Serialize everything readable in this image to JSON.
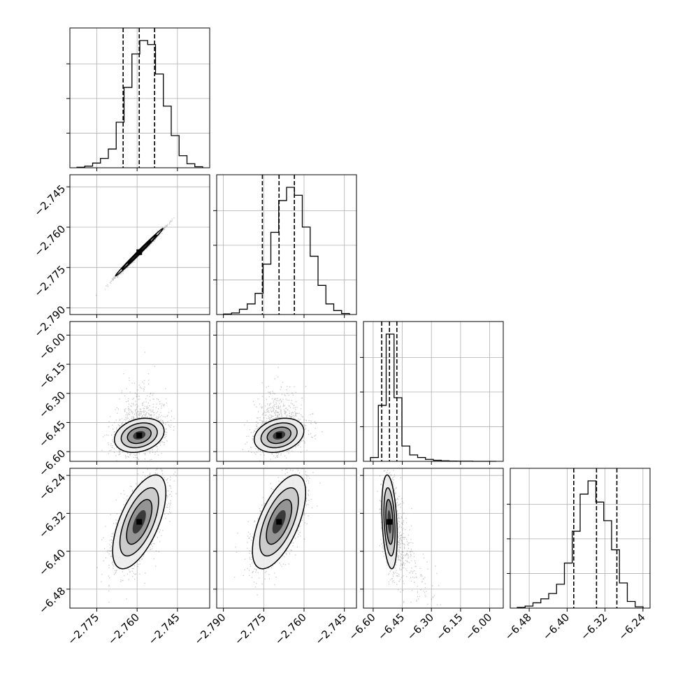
{
  "chart_data": {
    "type": "corner",
    "grid": true,
    "params": [
      {
        "range": [
          -2.785,
          -2.733
        ],
        "ticks": [
          -2.775,
          -2.76,
          -2.745
        ],
        "tick_labels": [
          "−2.775",
          "−2.760",
          "−2.745"
        ],
        "hist": [
          0.004,
          0.012,
          0.035,
          0.07,
          0.14,
          0.34,
          0.6,
          0.85,
          0.95,
          0.92,
          0.7,
          0.46,
          0.24,
          0.09,
          0.03,
          0.008
        ],
        "quantiles": [
          -2.7652,
          -2.7592,
          -2.7535
        ]
      },
      {
        "range": [
          -2.7925,
          -2.7405
        ],
        "ticks": [
          -2.79,
          -2.775,
          -2.76,
          -2.745
        ],
        "tick_labels": [
          "−2.790",
          "−2.775",
          "−2.760",
          "−2.745"
        ],
        "hist": [
          0.004,
          0.012,
          0.04,
          0.08,
          0.16,
          0.38,
          0.62,
          0.86,
          0.96,
          0.9,
          0.66,
          0.44,
          0.22,
          0.08,
          0.03,
          0.008
        ],
        "quantiles": [
          -2.7755,
          -2.7693,
          -2.7636
        ]
      },
      {
        "range": [
          -6.65,
          -5.93
        ],
        "ticks": [
          -6.6,
          -6.45,
          -6.3,
          -6.15,
          -6.0
        ],
        "tick_labels": [
          "−6.60",
          "−6.45",
          "−6.30",
          "−6.15",
          "−6.00"
        ],
        "hist": [
          0.03,
          0.44,
          1.0,
          0.5,
          0.12,
          0.05,
          0.03,
          0.015,
          0.008,
          0.004,
          0.002,
          0.001,
          0.001,
          0.0,
          0.0,
          0.0
        ],
        "quantiles": [
          -6.556,
          -6.516,
          -6.478
        ]
      },
      {
        "range": [
          -6.52,
          -6.225
        ],
        "ticks": [
          -6.48,
          -6.4,
          -6.32,
          -6.24
        ],
        "tick_labels": [
          "−6.48",
          "−6.40",
          "−6.32",
          "−6.24"
        ],
        "hist": [
          0.005,
          0.015,
          0.04,
          0.07,
          0.11,
          0.18,
          0.34,
          0.58,
          0.86,
          0.96,
          0.8,
          0.66,
          0.44,
          0.19,
          0.05,
          0.01
        ],
        "quantiles": [
          -6.386,
          -6.338,
          -6.295
        ]
      }
    ],
    "pairs": [
      {
        "x": 0,
        "y": 1,
        "mean": [
          -2.7592,
          -2.7693
        ],
        "sd": [
          0.004,
          0.004
        ],
        "rho": 0.995
      },
      {
        "x": 0,
        "y": 2,
        "mean": [
          -2.7592,
          -6.516
        ],
        "sd": [
          0.0042,
          0.04
        ],
        "rho": 0.25
      },
      {
        "x": 1,
        "y": 2,
        "mean": [
          -2.7693,
          -6.516
        ],
        "sd": [
          0.0042,
          0.04
        ],
        "rho": 0.25
      },
      {
        "x": 0,
        "y": 3,
        "mean": [
          -2.7592,
          -6.338
        ],
        "sd": [
          0.0045,
          0.045
        ],
        "rho": 0.62
      },
      {
        "x": 1,
        "y": 3,
        "mean": [
          -2.7693,
          -6.338
        ],
        "sd": [
          0.0045,
          0.045
        ],
        "rho": 0.62
      },
      {
        "x": 2,
        "y": 3,
        "mean": [
          -6.516,
          -6.338
        ],
        "sd": [
          0.018,
          0.045
        ],
        "rho": -0.3
      }
    ]
  }
}
